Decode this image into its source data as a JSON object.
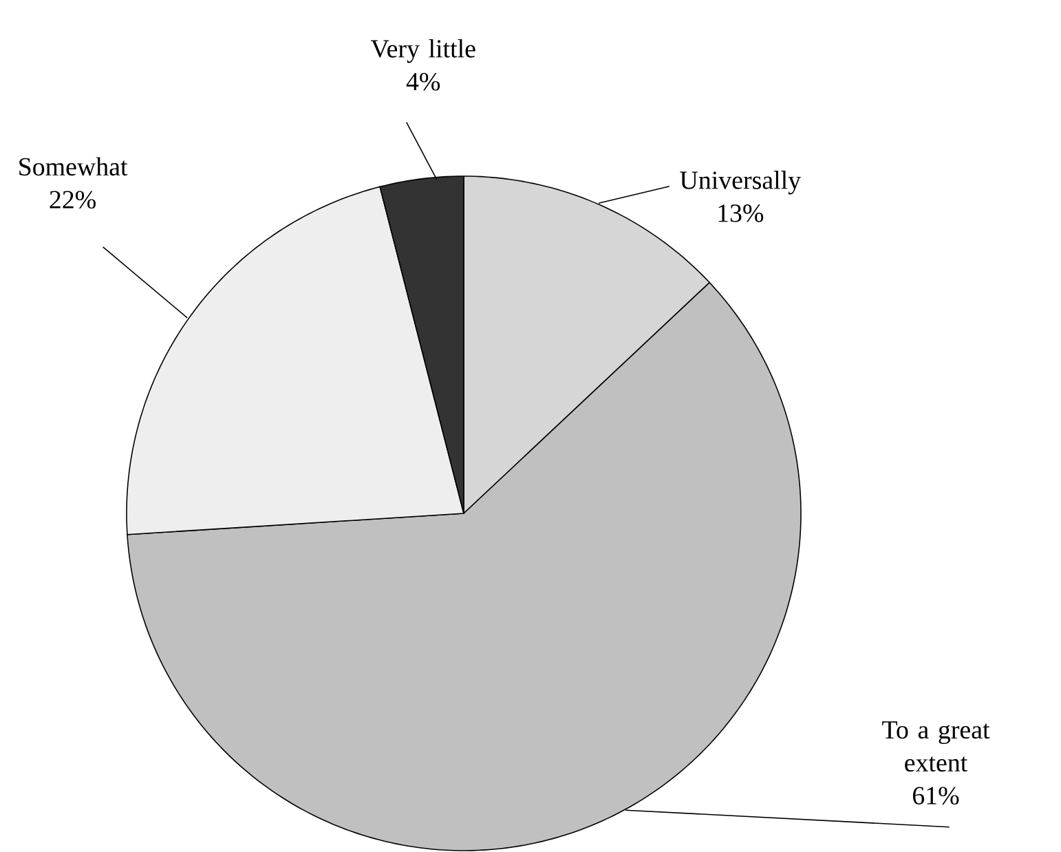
{
  "chart_data": {
    "type": "pie",
    "categories": [
      "Universally",
      "To a great extent",
      "Somewhat",
      "Very little"
    ],
    "values": [
      13,
      61,
      22,
      4
    ],
    "value_labels": [
      "13%",
      "61%",
      "22%",
      "4%"
    ],
    "colors": [
      "#d6d6d6",
      "#c0c0c0",
      "#eeeeee",
      "#333333"
    ]
  }
}
